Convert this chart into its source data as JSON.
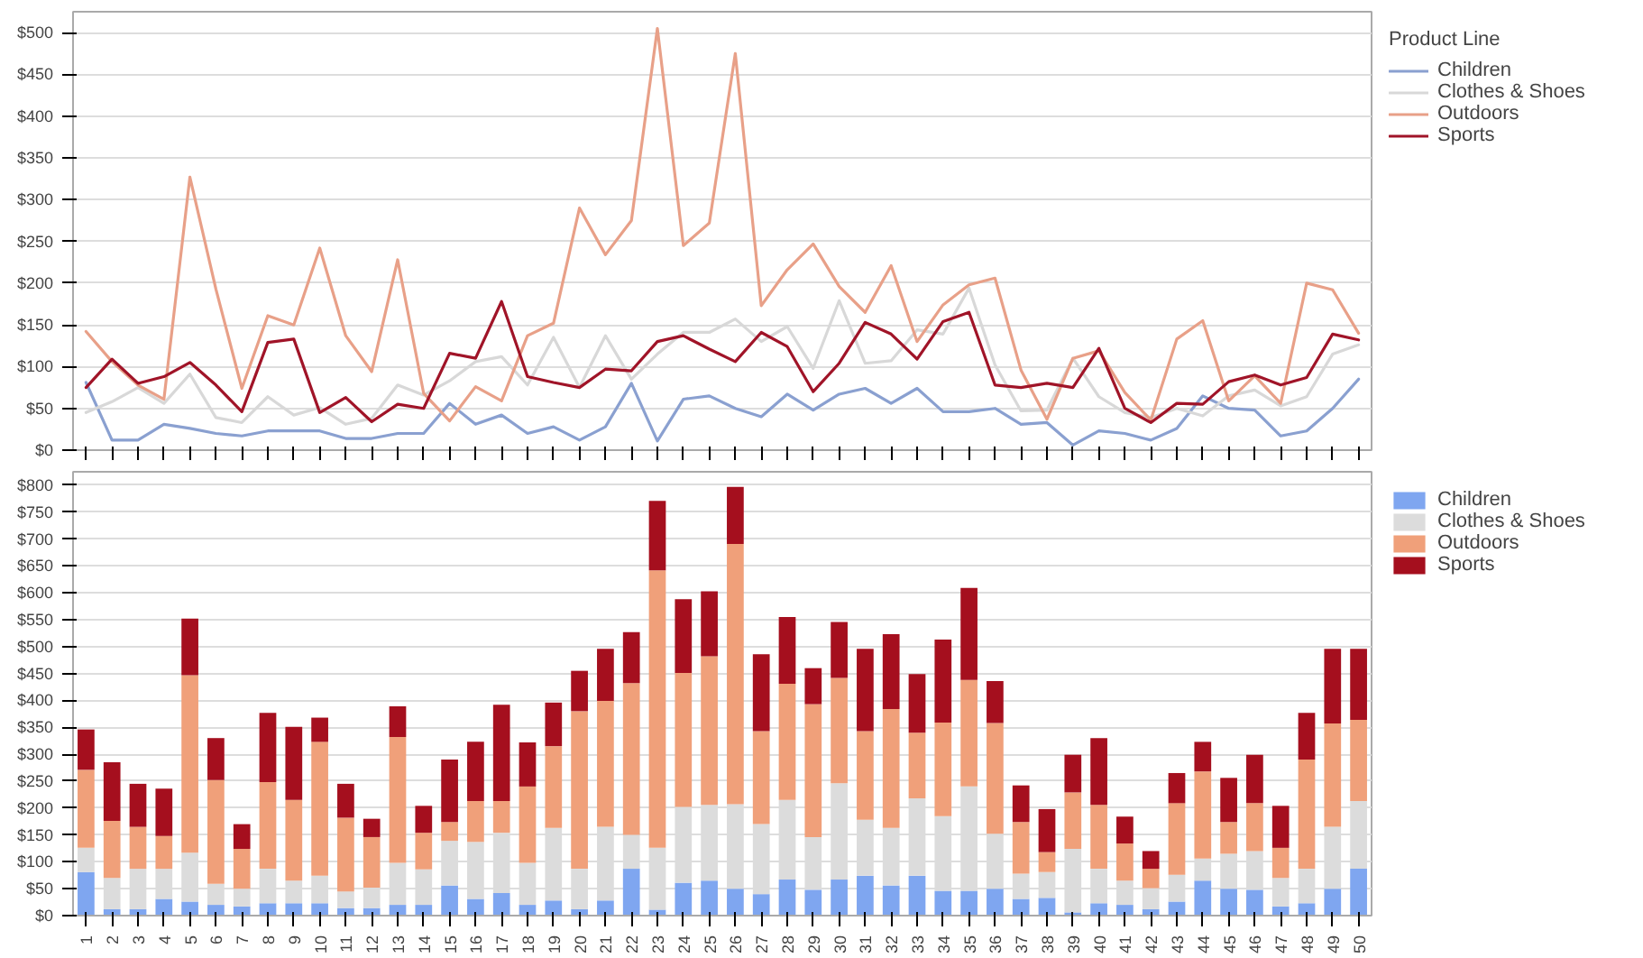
{
  "chart_data": [
    {
      "type": "line",
      "legend_title": "Product Line",
      "legend": "right",
      "grid": "y",
      "tick_labels": "y",
      "line_style": "solid",
      "categories": [
        "1",
        "2",
        "3",
        "4",
        "5",
        "6",
        "7",
        "8",
        "9",
        "10",
        "11",
        "12",
        "13",
        "14",
        "15",
        "16",
        "17",
        "18",
        "19",
        "20",
        "21",
        "22",
        "23",
        "24",
        "25",
        "26",
        "27",
        "28",
        "29",
        "30",
        "31",
        "32",
        "33",
        "34",
        "35",
        "36",
        "37",
        "38",
        "39",
        "40",
        "41",
        "42",
        "43",
        "44",
        "45",
        "46",
        "47",
        "48",
        "49",
        "50"
      ],
      "ylim": [
        0,
        525
      ],
      "yticks": [
        {
          "value": 0,
          "label": "$0"
        },
        {
          "value": 50,
          "label": "$50"
        },
        {
          "value": 100,
          "label": "$100"
        },
        {
          "value": 150,
          "label": "$150"
        },
        {
          "value": 200,
          "label": "$200"
        },
        {
          "value": 250,
          "label": "$250"
        },
        {
          "value": 300,
          "label": "$300"
        },
        {
          "value": 350,
          "label": "$350"
        },
        {
          "value": 400,
          "label": "$400"
        },
        {
          "value": 450,
          "label": "$450"
        },
        {
          "value": 500,
          "label": "$500"
        }
      ],
      "series": [
        {
          "name": "Children",
          "color": "#8aa0d0",
          "values": [
            81,
            12,
            12,
            31,
            26,
            20,
            17,
            23,
            23,
            23,
            14,
            14,
            20,
            20,
            56,
            31,
            42,
            20,
            28,
            12,
            28,
            80,
            11,
            61,
            65,
            50,
            40,
            67,
            48,
            67,
            74,
            56,
            74,
            46,
            46,
            50,
            31,
            33,
            6,
            23,
            20,
            12,
            26,
            65,
            50,
            48,
            17,
            23,
            50,
            85
          ]
        },
        {
          "name": "Clothes & Shoes",
          "color": "#d8d8d8",
          "values": [
            45,
            58,
            75,
            56,
            91,
            39,
            33,
            64,
            42,
            51,
            31,
            38,
            78,
            66,
            83,
            106,
            112,
            78,
            135,
            75,
            137,
            85,
            115,
            141,
            141,
            157,
            130,
            148,
            98,
            179,
            104,
            107,
            144,
            139,
            194,
            102,
            47,
            48,
            110,
            64,
            45,
            39,
            50,
            41,
            65,
            72,
            53,
            64,
            115,
            126
          ]
        },
        {
          "name": "Outdoors",
          "color": "#e8a088",
          "values": [
            142,
            106,
            78,
            61,
            327,
            193,
            74,
            161,
            150,
            242,
            137,
            94,
            228,
            68,
            35,
            76,
            59,
            137,
            152,
            290,
            234,
            275,
            505,
            245,
            272,
            475,
            173,
            216,
            247,
            196,
            165,
            221,
            130,
            174,
            198,
            206,
            96,
            37,
            110,
            119,
            69,
            36,
            133,
            155,
            59,
            89,
            56,
            200,
            192,
            140
          ]
        },
        {
          "name": "Sports",
          "color": "#a01428",
          "values": [
            75,
            109,
            80,
            88,
            105,
            78,
            46,
            129,
            133,
            45,
            63,
            34,
            55,
            50,
            116,
            110,
            178,
            88,
            81,
            75,
            97,
            95,
            130,
            137,
            121,
            106,
            141,
            124,
            70,
            104,
            153,
            139,
            109,
            154,
            165,
            78,
            75,
            80,
            75,
            122,
            50,
            33,
            56,
            55,
            82,
            90,
            78,
            87,
            139,
            132
          ]
        }
      ]
    },
    {
      "type": "bar",
      "stacked": true,
      "legend": "right",
      "grid": "y",
      "categories": [
        "1",
        "2",
        "3",
        "4",
        "5",
        "6",
        "7",
        "8",
        "9",
        "10",
        "11",
        "12",
        "13",
        "14",
        "15",
        "16",
        "17",
        "18",
        "19",
        "20",
        "21",
        "22",
        "23",
        "24",
        "25",
        "26",
        "27",
        "28",
        "29",
        "30",
        "31",
        "32",
        "33",
        "34",
        "35",
        "36",
        "37",
        "38",
        "39",
        "40",
        "41",
        "42",
        "43",
        "44",
        "45",
        "46",
        "47",
        "48",
        "49",
        "50"
      ],
      "ylim": [
        0,
        825
      ],
      "yticks": [
        {
          "value": 0,
          "label": "$0"
        },
        {
          "value": 50,
          "label": "$50"
        },
        {
          "value": 100,
          "label": "$100"
        },
        {
          "value": 150,
          "label": "$150"
        },
        {
          "value": 200,
          "label": "$200"
        },
        {
          "value": 250,
          "label": "$250"
        },
        {
          "value": 300,
          "label": "$300"
        },
        {
          "value": 350,
          "label": "$350"
        },
        {
          "value": 400,
          "label": "$400"
        },
        {
          "value": 450,
          "label": "$450"
        },
        {
          "value": 500,
          "label": "$500"
        },
        {
          "value": 550,
          "label": "$550"
        },
        {
          "value": 600,
          "label": "$600"
        },
        {
          "value": 650,
          "label": "$650"
        },
        {
          "value": 700,
          "label": "$700"
        },
        {
          "value": 750,
          "label": "$750"
        },
        {
          "value": 800,
          "label": "$800"
        }
      ],
      "series": [
        {
          "name": "Children",
          "color": "#7fa6f0",
          "values": [
            81,
            12,
            12,
            31,
            26,
            20,
            17,
            23,
            23,
            23,
            14,
            14,
            20,
            20,
            56,
            31,
            42,
            20,
            28,
            12,
            28,
            87,
            11,
            61,
            65,
            50,
            40,
            67,
            48,
            67,
            74,
            56,
            74,
            46,
            46,
            50,
            31,
            33,
            6,
            23,
            20,
            12,
            26,
            65,
            50,
            48,
            17,
            23,
            50,
            87
          ]
        },
        {
          "name": "Clothes & Shoes",
          "color": "#dcdcdc",
          "values": [
            45,
            58,
            75,
            56,
            91,
            39,
            33,
            64,
            42,
            51,
            31,
            38,
            78,
            66,
            83,
            106,
            112,
            78,
            135,
            75,
            137,
            63,
            115,
            141,
            141,
            157,
            130,
            148,
            98,
            179,
            104,
            107,
            144,
            139,
            194,
            102,
            47,
            48,
            118,
            64,
            45,
            39,
            50,
            41,
            65,
            72,
            53,
            64,
            115,
            126
          ]
        },
        {
          "name": "Outdoors",
          "color": "#f0a07a",
          "values": [
            145,
            106,
            78,
            61,
            330,
            193,
            74,
            161,
            150,
            249,
            137,
            94,
            234,
            68,
            35,
            76,
            59,
            142,
            152,
            293,
            234,
            282,
            516,
            249,
            276,
            484,
            173,
            216,
            247,
            196,
            165,
            221,
            122,
            174,
            198,
            206,
            96,
            37,
            105,
            119,
            69,
            36,
            133,
            162,
            59,
            89,
            56,
            203,
            192,
            151
          ]
        },
        {
          "name": "Sports",
          "color": "#a50f1e",
          "values": [
            75,
            109,
            80,
            88,
            105,
            78,
            46,
            129,
            136,
            45,
            63,
            34,
            57,
            50,
            116,
            110,
            179,
            82,
            81,
            75,
            97,
            95,
            129,
            137,
            121,
            106,
            143,
            124,
            67,
            104,
            153,
            139,
            109,
            154,
            171,
            78,
            68,
            80,
            70,
            124,
            50,
            33,
            56,
            55,
            82,
            90,
            78,
            87,
            139,
            132
          ]
        }
      ]
    }
  ]
}
